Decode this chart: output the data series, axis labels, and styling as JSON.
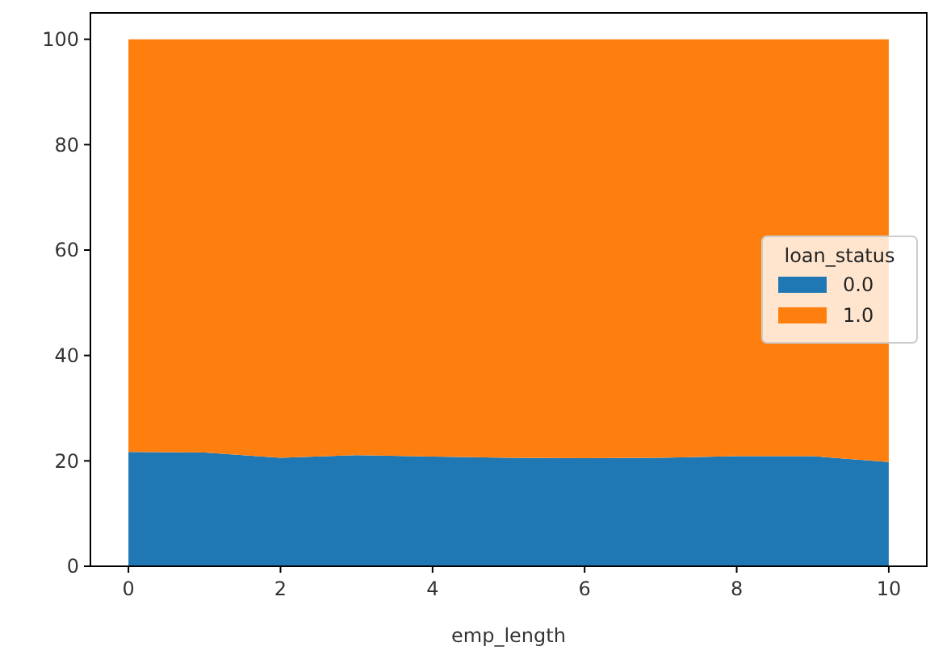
{
  "chart_data": {
    "type": "area",
    "stacked": true,
    "xlabel": "emp_length",
    "legend_title": "loan_status",
    "legend": "center right",
    "x": [
      0,
      1,
      2,
      3,
      4,
      5,
      6,
      7,
      8,
      9,
      10
    ],
    "series": [
      {
        "name": "0.0",
        "color": "#1f77b4",
        "values": [
          21.7,
          21.6,
          20.6,
          21.1,
          20.8,
          20.6,
          20.5,
          20.6,
          20.9,
          20.9,
          19.8
        ]
      },
      {
        "name": "1.0",
        "color": "#ff7f0e",
        "values": [
          78.3,
          78.4,
          79.4,
          78.9,
          79.2,
          79.4,
          79.5,
          79.4,
          79.1,
          79.1,
          80.2
        ]
      }
    ],
    "xlim": [
      -0.5,
      10.5
    ],
    "ylim": [
      0,
      105
    ],
    "xticks": [
      0,
      2,
      4,
      6,
      8,
      10
    ],
    "yticks": [
      0,
      20,
      40,
      60,
      80,
      100
    ]
  }
}
